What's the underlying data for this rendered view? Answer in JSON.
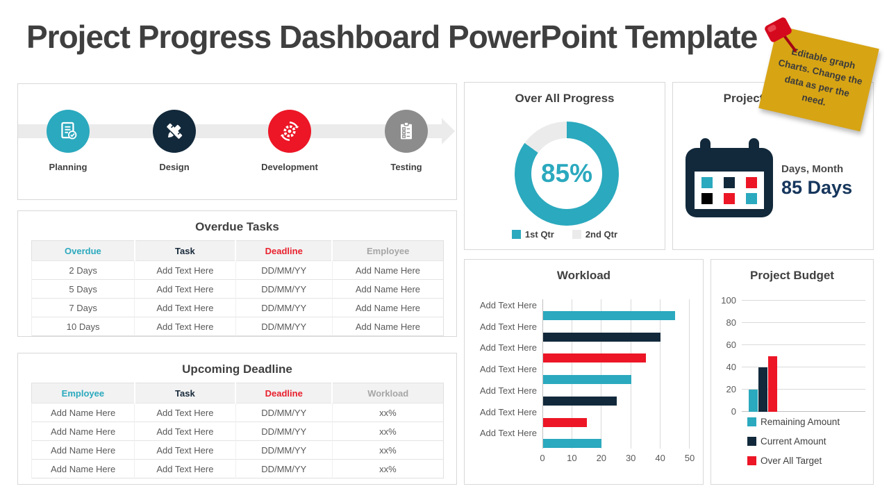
{
  "page": {
    "title": "Project Progress Dashboard PowerPoint Template"
  },
  "sticky_note": {
    "text": "Editable graph Charts. Change the data as per the need."
  },
  "colors": {
    "teal": "#2BA9BE",
    "navy": "#12293B",
    "red": "#EC1626",
    "gray": "#8C8C8C",
    "timeline_band": "#EBEBEB",
    "note_yellow": "#D7A414",
    "pin_red": "#D5091E"
  },
  "timeline": {
    "stages": [
      {
        "label": "Planning",
        "icon": "document-check-icon",
        "color": "#2BA9BE"
      },
      {
        "label": "Design",
        "icon": "pencil-ruler-icon",
        "color": "#12293B"
      },
      {
        "label": "Development",
        "icon": "gear-sync-icon",
        "color": "#EC1626"
      },
      {
        "label": "Testing",
        "icon": "clipboard-checklist-icon",
        "color": "#8C8C8C"
      }
    ]
  },
  "overdue_table": {
    "title": "Overdue Tasks",
    "headers": [
      "Overdue",
      "Task",
      "Deadline",
      "Employee"
    ],
    "rows": [
      [
        "2 Days",
        "Add Text Here",
        "DD/MM/YY",
        "Add Name Here"
      ],
      [
        "5 Days",
        "Add Text Here",
        "DD/MM/YY",
        "Add Name Here"
      ],
      [
        "7 Days",
        "Add Text Here",
        "DD/MM/YY",
        "Add Name Here"
      ],
      [
        "10 Days",
        "Add Text Here",
        "DD/MM/YY",
        "Add Name Here"
      ]
    ]
  },
  "upcoming_table": {
    "title": "Upcoming Deadline",
    "headers": [
      "Employee",
      "Task",
      "Deadline",
      "Workload"
    ],
    "rows": [
      [
        "Add Name Here",
        "Add Text Here",
        "DD/MM/YY",
        "xx%"
      ],
      [
        "Add Name Here",
        "Add Text Here",
        "DD/MM/YY",
        "xx%"
      ],
      [
        "Add Name Here",
        "Add Text Here",
        "DD/MM/YY",
        "xx%"
      ],
      [
        "Add Name Here",
        "Add Text Here",
        "DD/MM/YY",
        "xx%"
      ]
    ]
  },
  "launch": {
    "title": "Projected Launch",
    "subtitle": "Days, Month",
    "value": "85 Days"
  },
  "chart_data": [
    {
      "type": "pie",
      "name": "overall_progress",
      "title": "Over All Progress",
      "donut": true,
      "center_label": "85%",
      "slices": [
        {
          "label": "1st Qtr",
          "value": 85,
          "color": "#2BA9BE"
        },
        {
          "label": "2nd Qtr",
          "value": 15,
          "color": "#EBEBEB"
        }
      ],
      "legend_position": "bottom"
    },
    {
      "type": "bar",
      "name": "workload",
      "title": "Workload",
      "orientation": "horizontal",
      "categories": [
        "Add Text Here",
        "Add Text Here",
        "Add Text Here",
        "Add Text Here",
        "Add Text Here",
        "Add Text Here",
        "Add Text Here"
      ],
      "values": [
        45,
        40,
        35,
        30,
        25,
        15,
        20
      ],
      "bar_colors": [
        "#2BA9BE",
        "#12293B",
        "#EC1626",
        "#2BA9BE",
        "#12293B",
        "#EC1626",
        "#2BA9BE"
      ],
      "x_ticks": [
        0,
        10,
        20,
        30,
        40,
        50
      ],
      "xlim": [
        0,
        50
      ],
      "grid": true,
      "xlabel": "",
      "ylabel": ""
    },
    {
      "type": "bar",
      "name": "project_budget",
      "title": "Project Budget",
      "orientation": "vertical",
      "series": [
        {
          "name": "Remaining Amount",
          "value": 20,
          "color": "#2BA9BE"
        },
        {
          "name": "Current Amount",
          "value": 40,
          "color": "#12293B"
        },
        {
          "name": "Over All Target",
          "value": 50,
          "color": "#EC1626"
        }
      ],
      "y_ticks": [
        100,
        80,
        60,
        40,
        20,
        0
      ],
      "ylim": [
        0,
        100
      ],
      "grid": true,
      "legend_position": "bottom"
    }
  ]
}
